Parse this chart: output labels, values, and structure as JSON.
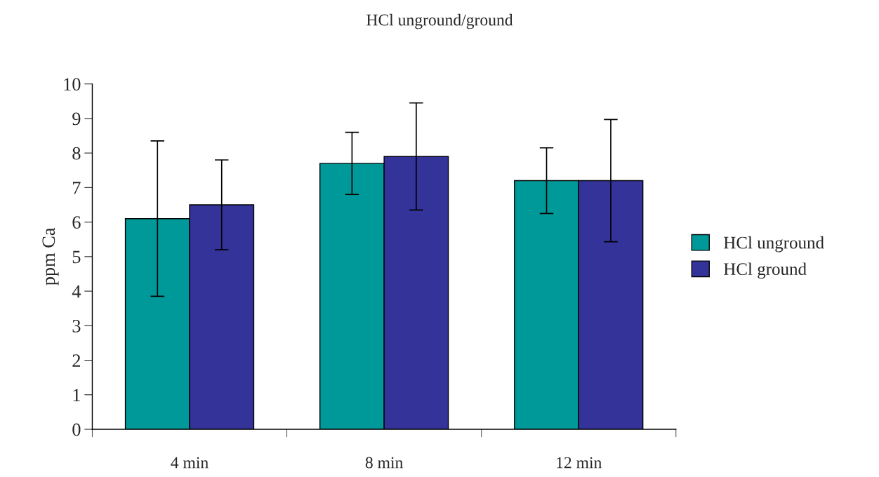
{
  "chart_data": {
    "type": "bar",
    "title": "HCl unground/ground",
    "ylabel": "ppm Ca",
    "categories": [
      "4 min",
      "8 min",
      "12 min"
    ],
    "series": [
      {
        "name": "HCl unground",
        "color": "#009999",
        "values": [
          6.1,
          7.7,
          7.2
        ],
        "errors": [
          2.25,
          0.9,
          0.95
        ]
      },
      {
        "name": "HCl ground",
        "color": "#333399",
        "values": [
          6.5,
          7.9,
          7.2
        ],
        "errors": [
          1.3,
          1.55,
          1.77
        ]
      }
    ],
    "ylim": [
      0,
      10
    ],
    "yticks": [
      0,
      1,
      2,
      3,
      4,
      5,
      6,
      7,
      8,
      9,
      10
    ],
    "grid": false,
    "legend": "right"
  }
}
